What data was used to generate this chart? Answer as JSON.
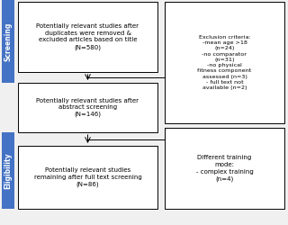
{
  "bg_color": "#f0f0f0",
  "sidebar_color": "#4472c4",
  "box_color": "#ffffff",
  "box_edge_color": "#000000",
  "text_color": "#000000",
  "sidebar_text_color": "#ffffff",
  "screening_label": "Screening",
  "eligibility_label": "Eligibility",
  "box1_text": "Potentially relevant studies after\nduplicates were removed &\nexcluded articles based on title\n(N=580)",
  "box2_text": "Potentially relevant studies after\nabstract screening\n(N=146)",
  "box3_text": "Potentially relevant studies\nremaining after full text screening\n(N=86)",
  "side_box1_text": "Exclusion criteria:\n-mean age >18\n(n=24)\n-no comparator\n(n=31)\n-no physical\nfitness component\nassessed (n=3)\n- full text not\navailable (n=2)",
  "side_box2_text": "Different training\nmode:\n- complex training\n(n=4)"
}
